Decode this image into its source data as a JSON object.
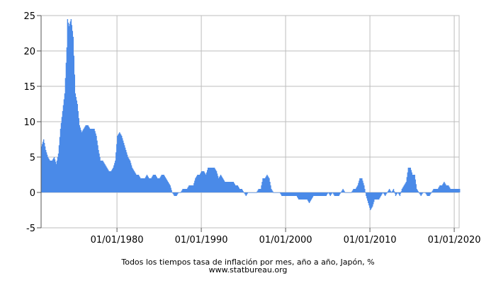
{
  "chart_data": {
    "type": "bar",
    "title": "Todos los tiempos tasa de inflación por mes, año a año, Japón, %",
    "source": "www.statbureau.org",
    "xlabel": "",
    "ylabel": "",
    "x_range": [
      "1971-01-01",
      "2020-08-01"
    ],
    "ylim": [
      -5,
      25
    ],
    "y_ticks": [
      25,
      20,
      15,
      10,
      5,
      0,
      -5
    ],
    "x_ticks": [
      {
        "date": "1980-01-01",
        "label": "01/01/1980"
      },
      {
        "date": "1990-01-01",
        "label": "01/01/1990"
      },
      {
        "date": "2000-01-01",
        "label": "01/01/2000"
      },
      {
        "date": "2010-01-01",
        "label": "01/01/2010"
      },
      {
        "date": "2020-01-01",
        "label": "01/01/2020"
      }
    ],
    "grid": true,
    "bar_color": "#4a8ae8",
    "series_x": [
      "1971-01",
      "1971-04",
      "1971-07",
      "1971-10",
      "1972-01",
      "1972-04",
      "1972-07",
      "1972-10",
      "1973-01",
      "1973-04",
      "1973-07",
      "1973-10",
      "1974-01",
      "1974-02",
      "1974-04",
      "1974-07",
      "1974-10",
      "1975-01",
      "1975-04",
      "1975-07",
      "1975-10",
      "1976-01",
      "1976-04",
      "1976-07",
      "1976-10",
      "1977-01",
      "1977-04",
      "1977-07",
      "1977-10",
      "1978-01",
      "1978-04",
      "1978-07",
      "1978-10",
      "1979-01",
      "1979-04",
      "1979-07",
      "1979-10",
      "1980-01",
      "1980-04",
      "1980-07",
      "1980-10",
      "1981-01",
      "1981-04",
      "1981-07",
      "1981-10",
      "1982-01",
      "1982-04",
      "1982-07",
      "1982-10",
      "1983-01",
      "1983-04",
      "1983-07",
      "1983-10",
      "1984-01",
      "1984-04",
      "1984-07",
      "1984-10",
      "1985-01",
      "1985-04",
      "1985-07",
      "1985-10",
      "1986-01",
      "1986-04",
      "1986-07",
      "1986-10",
      "1987-01",
      "1987-04",
      "1987-07",
      "1987-10",
      "1988-01",
      "1988-04",
      "1988-07",
      "1988-10",
      "1989-01",
      "1989-04",
      "1989-07",
      "1989-10",
      "1990-01",
      "1990-04",
      "1990-07",
      "1990-10",
      "1991-01",
      "1991-04",
      "1991-07",
      "1991-10",
      "1992-01",
      "1992-04",
      "1992-07",
      "1992-10",
      "1993-01",
      "1993-04",
      "1993-07",
      "1993-10",
      "1994-01",
      "1994-04",
      "1994-07",
      "1994-10",
      "1995-01",
      "1995-04",
      "1995-07",
      "1995-10",
      "1996-01",
      "1996-04",
      "1996-07",
      "1996-10",
      "1997-01",
      "1997-04",
      "1997-07",
      "1997-10",
      "1998-01",
      "1998-04",
      "1998-07",
      "1998-10",
      "1999-01",
      "1999-04",
      "1999-07",
      "1999-10",
      "2000-01",
      "2000-04",
      "2000-07",
      "2000-10",
      "2001-01",
      "2001-04",
      "2001-07",
      "2001-10",
      "2002-01",
      "2002-04",
      "2002-07",
      "2002-10",
      "2003-01",
      "2003-04",
      "2003-07",
      "2003-10",
      "2004-01",
      "2004-04",
      "2004-07",
      "2004-10",
      "2005-01",
      "2005-04",
      "2005-07",
      "2005-10",
      "2006-01",
      "2006-04",
      "2006-07",
      "2006-10",
      "2007-01",
      "2007-04",
      "2007-07",
      "2007-10",
      "2008-01",
      "2008-04",
      "2008-07",
      "2008-10",
      "2009-01",
      "2009-04",
      "2009-07",
      "2009-10",
      "2010-01",
      "2010-04",
      "2010-07",
      "2010-10",
      "2011-01",
      "2011-04",
      "2011-07",
      "2011-10",
      "2012-01",
      "2012-04",
      "2012-07",
      "2012-10",
      "2013-01",
      "2013-04",
      "2013-07",
      "2013-10",
      "2014-01",
      "2014-04",
      "2014-07",
      "2014-10",
      "2015-01",
      "2015-04",
      "2015-07",
      "2015-10",
      "2016-01",
      "2016-04",
      "2016-07",
      "2016-10",
      "2017-01",
      "2017-04",
      "2017-07",
      "2017-10",
      "2018-01",
      "2018-04",
      "2018-07",
      "2018-10",
      "2019-01",
      "2019-04",
      "2019-07",
      "2019-10",
      "2020-01",
      "2020-04",
      "2020-07",
      "2020-08"
    ],
    "series_y": [
      6.5,
      7.5,
      6.0,
      5.0,
      4.5,
      4.5,
      5.0,
      4.0,
      5.5,
      9.0,
      11.5,
      14.0,
      20.5,
      24.5,
      23.5,
      24.5,
      22.0,
      14.0,
      12.5,
      9.5,
      8.5,
      9.0,
      9.5,
      9.5,
      9.0,
      9.0,
      9.0,
      8.0,
      6.0,
      4.5,
      4.5,
      4.0,
      3.5,
      3.0,
      3.0,
      3.5,
      4.5,
      8.0,
      8.5,
      8.0,
      7.0,
      6.0,
      5.0,
      4.5,
      3.5,
      3.0,
      2.5,
      2.5,
      2.0,
      2.0,
      2.0,
      2.5,
      2.0,
      2.0,
      2.5,
      2.5,
      2.0,
      2.0,
      2.5,
      2.5,
      2.0,
      1.5,
      1.0,
      0.0,
      -0.5,
      -0.5,
      0.0,
      0.0,
      0.5,
      0.5,
      0.5,
      1.0,
      1.0,
      1.0,
      2.0,
      2.5,
      2.5,
      3.0,
      3.0,
      2.5,
      3.5,
      3.5,
      3.5,
      3.5,
      3.0,
      2.0,
      2.5,
      2.0,
      1.5,
      1.5,
      1.5,
      1.5,
      1.5,
      1.0,
      1.0,
      0.5,
      0.5,
      0.0,
      -0.5,
      0.0,
      0.0,
      0.0,
      0.0,
      0.0,
      0.5,
      0.5,
      2.0,
      2.0,
      2.5,
      2.0,
      0.5,
      0.0,
      0.0,
      0.0,
      0.0,
      -0.5,
      -0.5,
      -0.5,
      -0.5,
      -0.5,
      -0.5,
      -0.5,
      -0.5,
      -1.0,
      -1.0,
      -1.0,
      -1.0,
      -1.0,
      -1.5,
      -1.0,
      -0.5,
      -0.5,
      -0.5,
      -0.5,
      -0.5,
      -0.5,
      -0.5,
      0.0,
      -0.5,
      0.0,
      -0.5,
      -0.5,
      -0.5,
      0.0,
      0.5,
      0.0,
      0.0,
      0.0,
      0.0,
      0.5,
      0.5,
      1.0,
      2.0,
      2.0,
      1.0,
      -0.5,
      -1.5,
      -2.5,
      -2.0,
      -1.0,
      -1.0,
      -1.0,
      -0.5,
      0.0,
      -0.5,
      0.0,
      0.5,
      0.0,
      0.5,
      -0.5,
      0.0,
      -0.5,
      0.5,
      1.0,
      1.5,
      3.5,
      3.5,
      2.5,
      2.5,
      0.5,
      0.0,
      -0.5,
      0.0,
      0.0,
      -0.5,
      -0.5,
      0.0,
      0.5,
      0.5,
      0.5,
      1.0,
      1.0,
      1.5,
      1.0,
      1.0,
      0.5,
      0.5,
      0.5,
      0.5,
      0.5,
      0.5,
      -0.5,
      -0.5,
      -0.5
    ]
  },
  "caption": {
    "title": "Todos los tiempos tasa de inflación por mes, año a año, Japón, %",
    "site": "www.statbureau.org"
  },
  "colors": {
    "grid": "#bdbdbd",
    "axis": "#555555"
  }
}
